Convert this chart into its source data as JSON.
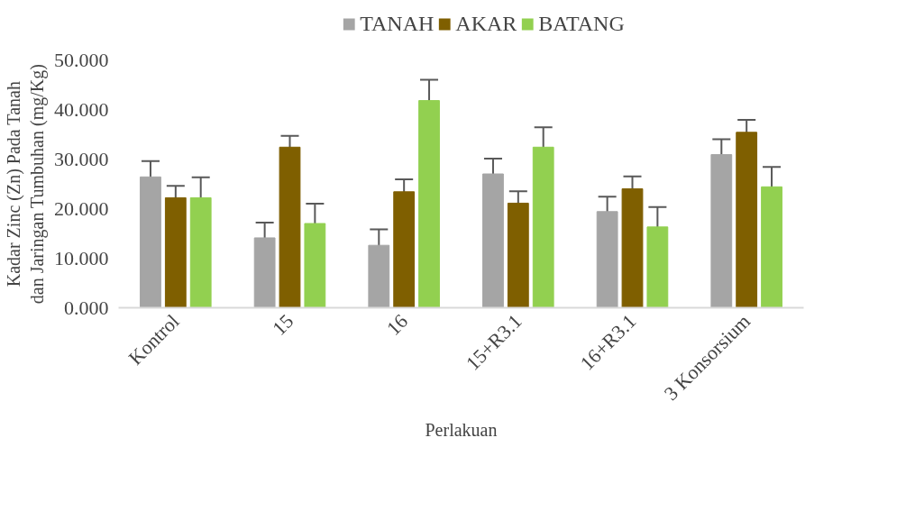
{
  "chart_data": {
    "type": "bar",
    "xlabel": "Perlakuan",
    "ylabel": "Kadar Zinc (Zn) Pada Tanah dan Jaringan Tumbuhan (mg/Kg)",
    "categories": [
      "Kontrol",
      "15",
      "16",
      "15+R3.1",
      "16+R3.1",
      "3 Konsorsium"
    ],
    "series": [
      {
        "name": "TANAH",
        "color": "#a5a5a5",
        "values": [
          26.4,
          14.1,
          12.6,
          27.0,
          19.4,
          30.9
        ],
        "errors": [
          3.2,
          3.1,
          3.2,
          3.1,
          3.0,
          3.1
        ]
      },
      {
        "name": "AKAR",
        "color": "#7f5f00",
        "values": [
          22.2,
          32.4,
          23.4,
          21.1,
          24.0,
          35.4
        ],
        "errors": [
          2.4,
          2.3,
          2.5,
          2.4,
          2.5,
          2.5
        ]
      },
      {
        "name": "BATANG",
        "color": "#92d050",
        "values": [
          22.2,
          17.0,
          41.8,
          32.4,
          16.3,
          24.4
        ],
        "errors": [
          4.1,
          4.0,
          4.2,
          4.0,
          4.0,
          4.0
        ]
      }
    ],
    "ylim": [
      0,
      50
    ],
    "yticks": [
      {
        "value": 0,
        "label": "0.000"
      },
      {
        "value": 10,
        "label": "10.000"
      },
      {
        "value": 20,
        "label": "20.000"
      },
      {
        "value": 30,
        "label": "30.000"
      },
      {
        "value": 40,
        "label": "40.000"
      },
      {
        "value": 50,
        "label": "50.000"
      }
    ],
    "grid": false,
    "legend": "top"
  }
}
